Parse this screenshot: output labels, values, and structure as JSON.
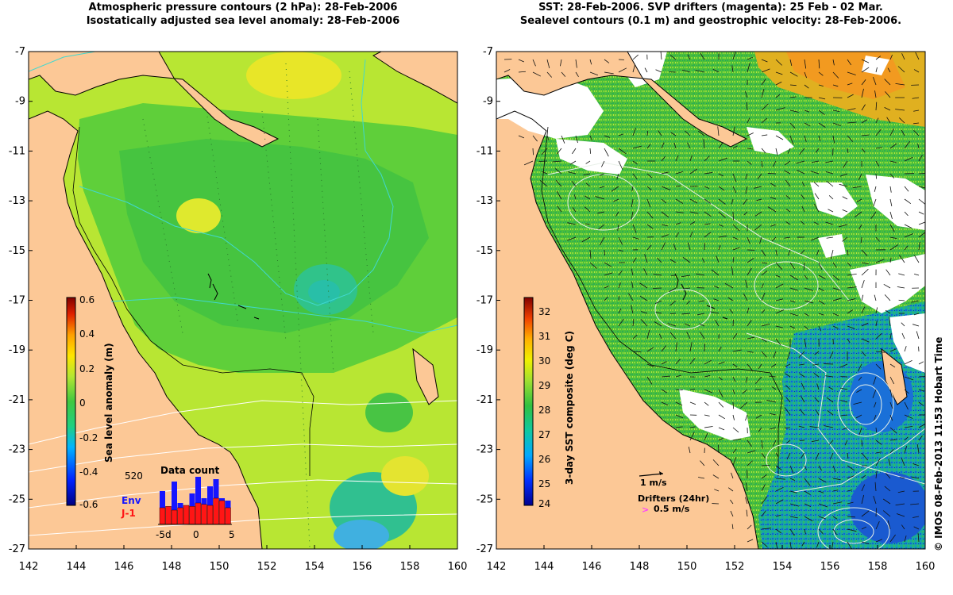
{
  "left_panel": {
    "title_line1": "Atmospheric pressure contours (2 hPa): 28-Feb-2006",
    "title_line2": "Isostatically adjusted sea level anomaly: 28-Feb-2006",
    "colorbar": {
      "label": "Sea level anomaly (m)",
      "ticks": [
        "0.6",
        "0.4",
        "0.2",
        "0",
        "-0.2",
        "-0.4",
        "-0.6"
      ],
      "range": [
        -0.6,
        0.6
      ]
    },
    "histogram": {
      "title": "Data count",
      "max_label": "520",
      "x_ticks": [
        "-5d",
        "0",
        "5"
      ],
      "legend": [
        {
          "name": "Env",
          "color": "#1515ff"
        },
        {
          "name": "J-1",
          "color": "#ff1515"
        }
      ],
      "env_counts": [
        0.7,
        0.3,
        0.9,
        0.45,
        0.25,
        0.65,
        1.0,
        0.55,
        0.8,
        0.95,
        0.55,
        0.5
      ],
      "j1_counts": [
        0.35,
        0.38,
        0.3,
        0.35,
        0.4,
        0.38,
        0.45,
        0.42,
        0.4,
        0.55,
        0.5,
        0.35
      ]
    }
  },
  "right_panel": {
    "title_line1": "SST: 28-Feb-2006. SVP drifters (magenta): 25 Feb - 02 Mar.",
    "title_line2": "Sealevel contours (0.1 m) and geostrophic velocity: 28-Feb-2006.",
    "colorbar": {
      "label": "3-day SST composite (deg C)",
      "ticks": [
        "32",
        "31",
        "30",
        "29",
        "28",
        "27",
        "26",
        "25",
        "24"
      ],
      "range": [
        24,
        32.5
      ]
    },
    "velocity_scale_label": "1 m/s",
    "drifters_label": "Drifters (24hr)",
    "drifter_scale_label": "0.5 m/s",
    "drifter_symbol": ">"
  },
  "axes": {
    "y_ticks": [
      "-7",
      "-9",
      "-11",
      "-13",
      "-15",
      "-17",
      "-19",
      "-21",
      "-23",
      "-25",
      "-27"
    ],
    "x_ticks": [
      "142",
      "144",
      "146",
      "148",
      "150",
      "152",
      "154",
      "156",
      "158",
      "160"
    ],
    "lat_range": [
      -27,
      -7
    ],
    "lon_range": [
      142,
      160
    ]
  },
  "credit": "© IMOS 08-Feb-2013 11:53 Hobart Time",
  "colors": {
    "land": "#fcc896",
    "ocean_green": "#5fcf3a",
    "ocean_lime": "#b8e633",
    "ocean_yellow": "#eee820",
    "ocean_teal": "#2ec38a",
    "cloud": "#ffffff",
    "coast": "#000000"
  }
}
